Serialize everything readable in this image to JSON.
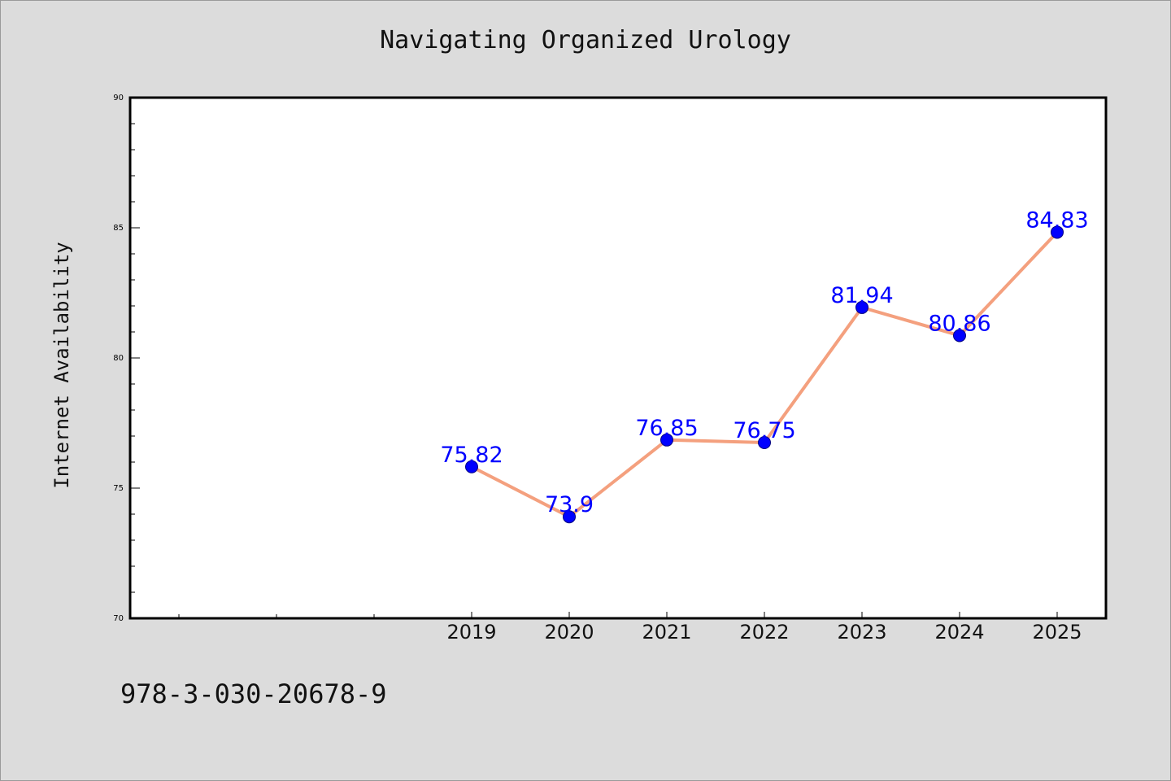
{
  "chart_data": {
    "type": "line",
    "title": "Navigating Organized Urology",
    "xlabel": "",
    "ylabel": "Internet Availability",
    "x": [
      "2019",
      "2020",
      "2021",
      "2022",
      "2023",
      "2024",
      "2025"
    ],
    "x_slot_offset": 3,
    "x_slots": 10,
    "values": [
      75.82,
      73.9,
      76.85,
      76.75,
      81.94,
      80.86,
      84.83
    ],
    "data_labels": [
      "75.82",
      "73.9",
      "76.85",
      "76.75",
      "81.94",
      "80.86",
      "84.83"
    ],
    "ylim": [
      70,
      90
    ],
    "yticks": [
      70,
      75,
      80,
      85,
      90
    ],
    "ytick_labels": [
      "70",
      "75",
      "80",
      "85",
      "90"
    ],
    "y_minor_step": 1,
    "grid": false,
    "legend": "none",
    "colors": {
      "line": "#f4a07e",
      "marker": "#0000ff",
      "marker_edge": "#000080",
      "label": "#0000ff",
      "plot_bg": "#ffffff",
      "page_bg": "#dcdcdc"
    }
  },
  "footer": {
    "code": "978-3-030-20678-9"
  }
}
